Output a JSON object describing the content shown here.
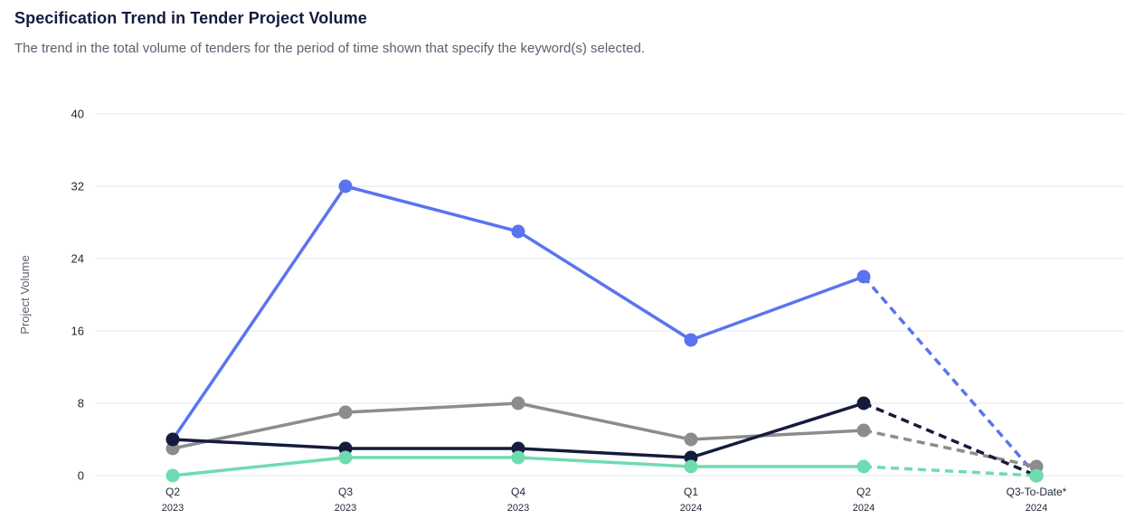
{
  "header": {
    "title": "Specification Trend in Tender Project Volume",
    "subtitle": "The trend in the total volume of tenders for the period of time shown that specify the keyword(s) selected."
  },
  "chart_data": {
    "type": "line",
    "title": "Specification Trend in Tender Project Volume",
    "ylabel": "Project Volume",
    "xlabel": "",
    "ylim": [
      0,
      40
    ],
    "yticks": [
      0,
      8,
      16,
      24,
      32,
      40
    ],
    "grid": true,
    "legend": "none",
    "categories": [
      {
        "label": "Q2",
        "year": "2023"
      },
      {
        "label": "Q3",
        "year": "2023"
      },
      {
        "label": "Q4",
        "year": "2023"
      },
      {
        "label": "Q1",
        "year": "2024"
      },
      {
        "label": "Q2",
        "year": "2024"
      },
      {
        "label": "Q3-To-Date*",
        "year": "2024"
      }
    ],
    "last_segment_style": "dashed",
    "series": [
      {
        "color": "#5a74f0",
        "values": [
          4,
          32,
          27,
          15,
          22,
          0
        ]
      },
      {
        "color": "#8c8c8c",
        "values": [
          3,
          7,
          8,
          4,
          5,
          1
        ]
      },
      {
        "color": "#151b3d",
        "values": [
          4,
          3,
          3,
          2,
          8,
          0
        ]
      },
      {
        "color": "#6edcb0",
        "values": [
          0,
          2,
          2,
          1,
          1,
          0
        ]
      }
    ]
  }
}
